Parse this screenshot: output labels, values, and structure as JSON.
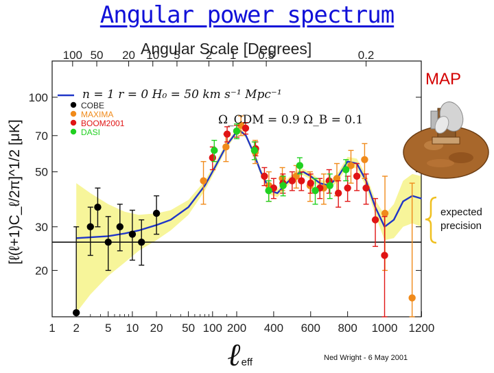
{
  "slide": {
    "title": "Angular power spectrum",
    "map_label": "MAP",
    "expected_line1": "expected",
    "expected_line2": "precision",
    "credit": "Ned Wright - 6 May 2001"
  },
  "colors": {
    "title": "#1010d8",
    "model": "#1f35c8",
    "band": "#f7f59a",
    "cobe": "#000000",
    "maxima": "#f08a1a",
    "boom": "#e01414",
    "dasi": "#20d020",
    "map_label": "#d40000"
  },
  "chart_data": {
    "type": "scatter",
    "title": "",
    "xlabel": "ℓ",
    "xlabel_sub": "eff",
    "ylabel_text": "[ℓ(ℓ+1)C_ℓ/2π]^1/2 [μK]",
    "top_axis_label": "Angular Scale [Degrees]",
    "x_scale": "hybrid log-linear",
    "xlim": [
      1,
      1200
    ],
    "ylim": [
      13,
      140
    ],
    "y_scale": "log",
    "x_ticks": [
      "1",
      "2",
      "5",
      "10",
      "20",
      "50",
      "100",
      "200",
      "400",
      "600",
      "800",
      "1000",
      "1200"
    ],
    "y_ticks": [
      "20",
      "30",
      "50",
      "70",
      "100"
    ],
    "top_ticks": [
      "100",
      "50",
      "20",
      "10",
      "5",
      "2",
      "1",
      "0.5",
      "0.2"
    ],
    "legend": [
      "COBE",
      "MAXIMA",
      "BOOM2001",
      "DASI"
    ],
    "legend_placement": "top-left",
    "model_annotation_1": "n = 1   r = 0   H₀ = 50 km s⁻¹ Mpc⁻¹",
    "model_annotation_2": "Ω_CDM = 0.9   Ω_B = 0.1",
    "reference_line_y": 26,
    "series": [
      {
        "name": "COBE",
        "points": [
          {
            "x": 2,
            "y": 13.5,
            "lo": 13.5,
            "hi": 30
          },
          {
            "x": 3,
            "y": 30,
            "lo": 23,
            "hi": 36
          },
          {
            "x": 3.7,
            "y": 36,
            "lo": 30,
            "hi": 43
          },
          {
            "x": 5,
            "y": 26,
            "lo": 20,
            "hi": 33
          },
          {
            "x": 7,
            "y": 30,
            "lo": 24,
            "hi": 37
          },
          {
            "x": 10,
            "y": 28,
            "lo": 22,
            "hi": 35
          },
          {
            "x": 13,
            "y": 26,
            "lo": 21,
            "hi": 32
          },
          {
            "x": 20,
            "y": 34,
            "lo": 28,
            "hi": 40
          }
        ]
      },
      {
        "name": "MAXIMA",
        "points": [
          {
            "x": 77,
            "y": 46,
            "lo": 37,
            "hi": 55
          },
          {
            "x": 147,
            "y": 63,
            "lo": 55,
            "hi": 71
          },
          {
            "x": 223,
            "y": 77,
            "lo": 70,
            "hi": 84
          },
          {
            "x": 300,
            "y": 60,
            "lo": 54,
            "hi": 67
          },
          {
            "x": 374,
            "y": 44,
            "lo": 38,
            "hi": 50
          },
          {
            "x": 447,
            "y": 47,
            "lo": 42,
            "hi": 52
          },
          {
            "x": 522,
            "y": 48,
            "lo": 43,
            "hi": 53
          },
          {
            "x": 597,
            "y": 44,
            "lo": 38,
            "hi": 50
          },
          {
            "x": 671,
            "y": 43,
            "lo": 37,
            "hi": 49
          },
          {
            "x": 742,
            "y": 47,
            "lo": 40,
            "hi": 54
          },
          {
            "x": 818,
            "y": 53,
            "lo": 45,
            "hi": 61
          },
          {
            "x": 892,
            "y": 56,
            "lo": 47,
            "hi": 65
          },
          {
            "x": 1002,
            "y": 34,
            "lo": 20,
            "hi": 48
          },
          {
            "x": 1149,
            "y": 15.5,
            "lo": 13,
            "hi": 45
          }
        ]
      },
      {
        "name": "BOOM2001",
        "points": [
          {
            "x": 100,
            "y": 57,
            "lo": 51,
            "hi": 63
          },
          {
            "x": 152,
            "y": 71,
            "lo": 66,
            "hi": 76
          },
          {
            "x": 200,
            "y": 73,
            "lo": 69,
            "hi": 77
          },
          {
            "x": 248,
            "y": 75,
            "lo": 71,
            "hi": 79
          },
          {
            "x": 302,
            "y": 62,
            "lo": 58,
            "hi": 66
          },
          {
            "x": 350,
            "y": 48,
            "lo": 44,
            "hi": 52
          },
          {
            "x": 400,
            "y": 43,
            "lo": 39,
            "hi": 47
          },
          {
            "x": 450,
            "y": 45,
            "lo": 41,
            "hi": 49
          },
          {
            "x": 500,
            "y": 46,
            "lo": 42,
            "hi": 50
          },
          {
            "x": 550,
            "y": 46,
            "lo": 42,
            "hi": 50
          },
          {
            "x": 600,
            "y": 45,
            "lo": 41,
            "hi": 49
          },
          {
            "x": 650,
            "y": 43,
            "lo": 39,
            "hi": 47
          },
          {
            "x": 700,
            "y": 46,
            "lo": 41,
            "hi": 51
          },
          {
            "x": 750,
            "y": 41,
            "lo": 36,
            "hi": 46
          },
          {
            "x": 800,
            "y": 43,
            "lo": 38,
            "hi": 48
          },
          {
            "x": 850,
            "y": 48,
            "lo": 42,
            "hi": 54
          },
          {
            "x": 900,
            "y": 43,
            "lo": 37,
            "hi": 49
          },
          {
            "x": 950,
            "y": 32,
            "lo": 25,
            "hi": 39
          },
          {
            "x": 1000,
            "y": 23,
            "lo": 13,
            "hi": 33
          }
        ]
      },
      {
        "name": "DASI",
        "points": [
          {
            "x": 105,
            "y": 61,
            "lo": 55,
            "hi": 67
          },
          {
            "x": 200,
            "y": 73,
            "lo": 68,
            "hi": 78
          },
          {
            "x": 296,
            "y": 61,
            "lo": 56,
            "hi": 66
          },
          {
            "x": 373,
            "y": 42,
            "lo": 38,
            "hi": 46
          },
          {
            "x": 451,
            "y": 44,
            "lo": 40,
            "hi": 48
          },
          {
            "x": 541,
            "y": 53,
            "lo": 49,
            "hi": 57
          },
          {
            "x": 625,
            "y": 42,
            "lo": 37,
            "hi": 47
          },
          {
            "x": 704,
            "y": 44,
            "lo": 39,
            "hi": 49
          },
          {
            "x": 791,
            "y": 51,
            "lo": 46,
            "hi": 56
          }
        ]
      }
    ],
    "model": {
      "name": "Model",
      "x": [
        2,
        3,
        5,
        8,
        12,
        20,
        30,
        50,
        80,
        110,
        150,
        190,
        220,
        250,
        290,
        330,
        380,
        420,
        470,
        520,
        560,
        600,
        650,
        700,
        750,
        800,
        850,
        900,
        950,
        1000,
        1050,
        1100,
        1150,
        1200
      ],
      "y": [
        27,
        27.2,
        27.5,
        28.2,
        29,
        30.5,
        32,
        36,
        44,
        53,
        64,
        71,
        73,
        70,
        60,
        50,
        42,
        41,
        45,
        49,
        50,
        48,
        45,
        44,
        48,
        55,
        54,
        46,
        36,
        30,
        32,
        38,
        40,
        39
      ]
    },
    "expected_band": {
      "x": [
        2,
        3,
        5,
        8,
        12,
        20,
        30,
        50,
        80,
        110,
        150,
        190,
        220,
        250,
        290,
        330,
        380,
        420,
        470,
        520,
        560,
        600,
        650,
        700,
        750,
        800,
        850,
        900,
        950,
        1000,
        1050,
        1100,
        1150,
        1200
      ],
      "lo": [
        13.5,
        16,
        19,
        21.5,
        24,
        26.5,
        29,
        33.5,
        42,
        51,
        62,
        69.5,
        71.5,
        68.5,
        58.5,
        48.5,
        40.5,
        39.5,
        43.5,
        47.5,
        48.5,
        46.5,
        43.5,
        42.5,
        46,
        52.5,
        51.5,
        43.5,
        33.5,
        26.5,
        27,
        30,
        31,
        30
      ],
      "hi": [
        45,
        41,
        37,
        34.5,
        33.5,
        34,
        35,
        38.5,
        46,
        55,
        66,
        72.5,
        74.5,
        71.5,
        61.5,
        51.5,
        43.5,
        42.5,
        46.5,
        50.5,
        51.5,
        49.5,
        46.5,
        45.5,
        50,
        57.5,
        56.5,
        48.5,
        38.5,
        33.5,
        37,
        46,
        49,
        48
      ]
    }
  }
}
